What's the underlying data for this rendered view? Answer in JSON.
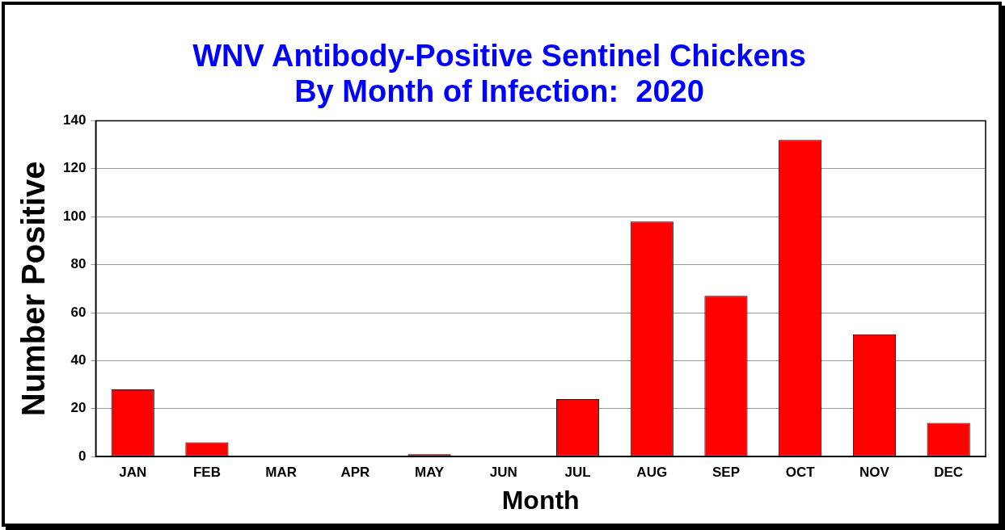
{
  "chart_data": {
    "type": "bar",
    "title": "WNV Antibody-Positive Sentinel Chickens\nBy Month of Infection:  2020",
    "xlabel": "Month",
    "ylabel": "Number Positive",
    "categories": [
      "JAN",
      "FEB",
      "MAR",
      "APR",
      "MAY",
      "JUN",
      "JUL",
      "AUG",
      "SEP",
      "OCT",
      "NOV",
      "DEC"
    ],
    "values": [
      28,
      6,
      0,
      0,
      1,
      0,
      24,
      98,
      67,
      132,
      51,
      14
    ],
    "color": "#ff0000",
    "ylim": [
      0,
      140
    ],
    "yticks": [
      0,
      20,
      40,
      60,
      80,
      100,
      120,
      140
    ],
    "grid": "y",
    "legend": false
  }
}
